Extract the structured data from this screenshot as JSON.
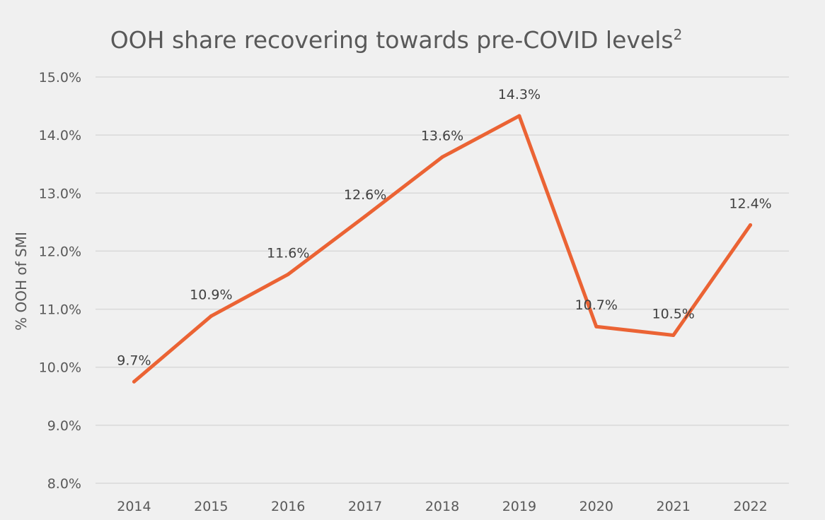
{
  "chart_data": {
    "type": "line",
    "title": "OOH share recovering towards pre-COVID levels",
    "title_superscript": "2",
    "xlabel": "",
    "ylabel": "% OOH of SMI",
    "categories": [
      "2014",
      "2015",
      "2016",
      "2017",
      "2018",
      "2019",
      "2020",
      "2021",
      "2022"
    ],
    "series": [
      {
        "values": [
          9.75,
          10.88,
          11.6,
          12.6,
          13.62,
          14.33,
          10.7,
          10.55,
          12.45
        ],
        "labels": [
          "9.7%",
          "10.9%",
          "11.6%",
          "12.6%",
          "13.6%",
          "14.3%",
          "10.7%",
          "10.5%",
          "12.4%"
        ],
        "color": "#eb6334"
      }
    ],
    "ylim": [
      8.0,
      15.0
    ],
    "yticks": [
      8.0,
      9.0,
      10.0,
      11.0,
      12.0,
      13.0,
      14.0,
      15.0
    ],
    "ytick_labels": [
      "8.0%",
      "9.0%",
      "10.0%",
      "11.0%",
      "12.0%",
      "13.0%",
      "14.0%",
      "15.0%"
    ],
    "grid": true,
    "legend": "none"
  }
}
